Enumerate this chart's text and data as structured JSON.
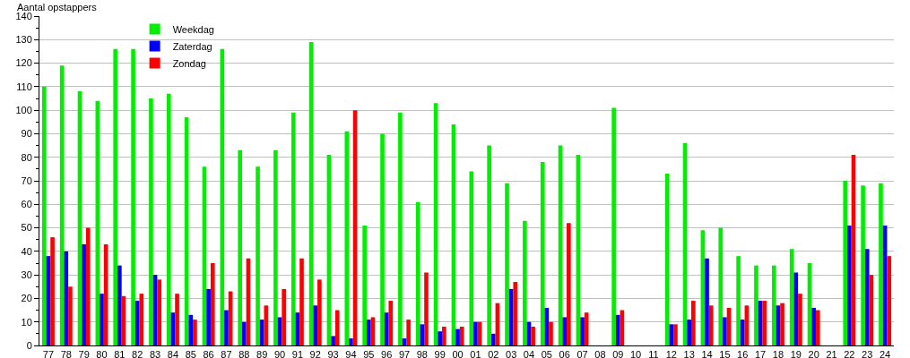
{
  "chart_data": {
    "type": "bar",
    "ylabel": "Aantal opstappers",
    "categories": [
      "77",
      "78",
      "79",
      "80",
      "81",
      "82",
      "83",
      "84",
      "85",
      "86",
      "87",
      "88",
      "89",
      "90",
      "91",
      "92",
      "93",
      "94",
      "95",
      "96",
      "97",
      "98",
      "99",
      "00",
      "01",
      "02",
      "03",
      "04",
      "05",
      "06",
      "07",
      "08",
      "09",
      "10",
      "11",
      "12",
      "13",
      "14",
      "15",
      "16",
      "17",
      "18",
      "19",
      "20",
      "21",
      "22",
      "23",
      "24"
    ],
    "series": [
      {
        "name": "Weekdag",
        "color": "#00ee00",
        "values": [
          110,
          119,
          108,
          104,
          126,
          126,
          105,
          107,
          97,
          76,
          126,
          83,
          76,
          83,
          99,
          129,
          81,
          91,
          51,
          90,
          99,
          61,
          103,
          94,
          74,
          85,
          69,
          53,
          78,
          85,
          81,
          null,
          101,
          null,
          null,
          73,
          86,
          49,
          50,
          38,
          34,
          34,
          41,
          35,
          null,
          70,
          68,
          69
        ]
      },
      {
        "name": "Zaterdag",
        "color": "#0000ff",
        "values": [
          38,
          40,
          43,
          22,
          34,
          19,
          30,
          14,
          13,
          24,
          15,
          10,
          11,
          12,
          14,
          17,
          4,
          3,
          11,
          14,
          3,
          9,
          6,
          7,
          10,
          5,
          24,
          10,
          16,
          12,
          12,
          null,
          13,
          null,
          null,
          9,
          11,
          37,
          12,
          11,
          19,
          17,
          31,
          16,
          null,
          51,
          41,
          51
        ]
      },
      {
        "name": "Zondag",
        "color": "#ff0000",
        "values": [
          46,
          25,
          50,
          43,
          21,
          22,
          28,
          22,
          11,
          35,
          23,
          37,
          17,
          24,
          37,
          28,
          15,
          100,
          12,
          19,
          11,
          31,
          8,
          8,
          10,
          18,
          27,
          8,
          10,
          52,
          14,
          null,
          15,
          null,
          null,
          9,
          19,
          17,
          16,
          17,
          19,
          18,
          22,
          15,
          null,
          81,
          30,
          38
        ]
      }
    ],
    "ylim": [
      0,
      140
    ],
    "yticks": [
      0,
      {
        "value": 5,
        "label": null
      },
      10,
      {
        "value": 15,
        "label": null
      },
      20,
      {
        "value": 25,
        "label": null
      },
      30,
      {
        "value": 35,
        "label": null
      },
      40,
      {
        "value": 45,
        "label": null
      },
      50,
      {
        "value": 55,
        "label": null
      },
      60,
      {
        "value": 65,
        "label": null
      },
      70,
      {
        "value": 75,
        "label": null
      },
      80,
      {
        "value": 85,
        "label": null
      },
      90,
      {
        "value": 95,
        "label": null
      },
      100,
      {
        "value": 105,
        "label": null
      },
      110,
      {
        "value": 115,
        "label": null
      },
      120,
      {
        "value": 125,
        "label": null
      },
      130,
      {
        "value": 135,
        "label": null
      },
      140
    ],
    "grid": "y",
    "legend": "top left"
  }
}
